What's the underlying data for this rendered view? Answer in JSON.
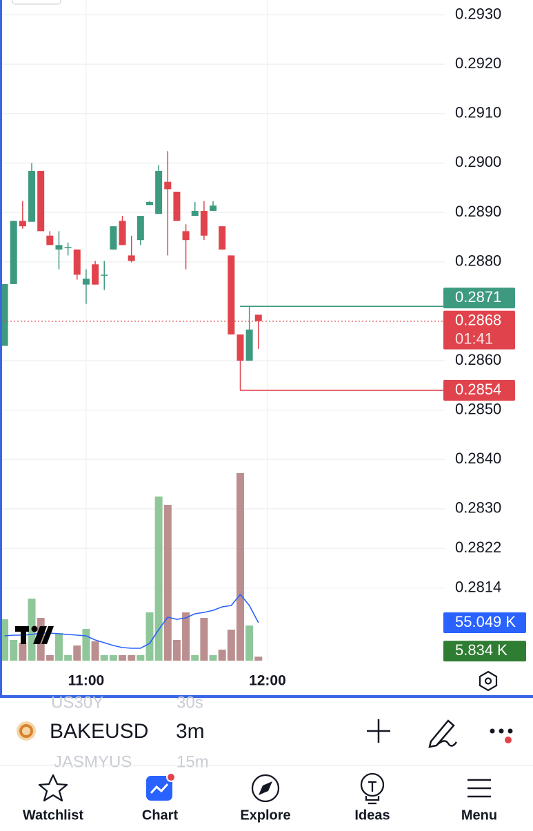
{
  "chart_data": {
    "type": "candlestick",
    "categories": [
      null,
      null,
      null,
      null,
      null,
      null,
      null,
      null,
      null,
      "11:00",
      null,
      null,
      null,
      null,
      null,
      null,
      null,
      null,
      null,
      null,
      null,
      null,
      null,
      null,
      null,
      null,
      null,
      null,
      null,
      "12:00"
    ],
    "open": [
      0.2863,
      0.28755,
      0.28883,
      0.28881,
      0.28984,
      0.28853,
      0.28825,
      0.2883,
      0.28825,
      0.28754,
      0.28795,
      0.28774,
      0.28825,
      0.28883,
      0.28813,
      0.28844,
      0.28915,
      0.28897,
      0.28962,
      0.28942,
      0.28862,
      0.28893,
      0.28903,
      0.28903,
      0.28872,
      0.28813,
      0.28653,
      0.286,
      0.28693,
      null
    ],
    "high": [
      0.28755,
      0.28883,
      0.28923,
      0.29,
      0.28984,
      0.28862,
      0.28862,
      0.28839,
      0.28825,
      0.28785,
      0.28802,
      0.28802,
      0.28872,
      0.28893,
      0.28853,
      0.28893,
      0.28923,
      0.28996,
      0.29024,
      0.28942,
      0.28876,
      0.28921,
      0.28923,
      0.28923,
      0.28872,
      0.28813,
      0.28653,
      0.2871,
      0.28693,
      null
    ],
    "low": [
      0.2863,
      0.28755,
      0.28867,
      0.28881,
      0.28862,
      0.28834,
      0.28785,
      0.28813,
      0.28764,
      0.28715,
      0.28754,
      0.28743,
      0.28825,
      0.28834,
      0.28799,
      0.28834,
      0.28915,
      0.28897,
      0.28813,
      0.28883,
      0.28785,
      0.28893,
      0.28844,
      0.28903,
      0.28825,
      0.28653,
      0.2854,
      0.286,
      0.28624,
      null
    ],
    "close": [
      0.28755,
      0.28883,
      0.28872,
      0.28984,
      0.28862,
      0.28834,
      0.28834,
      0.2883,
      0.28774,
      0.28766,
      0.28754,
      0.28774,
      0.28872,
      0.28834,
      0.28802,
      0.28893,
      0.28921,
      0.28984,
      0.28947,
      0.28883,
      0.28844,
      0.28903,
      0.28853,
      0.28914,
      0.28825,
      0.28653,
      0.286,
      0.28663,
      0.2868,
      null
    ],
    "up_color": "#3d9a80",
    "down_color": "#e1434c",
    "ylim": [
      0.2799,
      0.2933
    ],
    "yticks": [
      {
        "value": 0.293,
        "label": "0.2930"
      },
      {
        "value": 0.292,
        "label": "0.2920"
      },
      {
        "value": 0.291,
        "label": "0.2910"
      },
      {
        "value": 0.29,
        "label": "0.2900"
      },
      {
        "value": 0.289,
        "label": "0.2890"
      },
      {
        "value": 0.288,
        "label": "0.2880"
      },
      {
        "value": 0.286,
        "label": "0.2860"
      },
      {
        "value": 0.285,
        "label": "0.2850"
      },
      {
        "value": 0.284,
        "label": "0.2840"
      },
      {
        "value": 0.283,
        "label": "0.2830"
      },
      {
        "value": 0.2822,
        "label": "0.2822"
      },
      {
        "value": 0.2814,
        "label": "0.2814"
      }
    ],
    "grid": true,
    "price_lines": [
      {
        "value": 0.2871,
        "label": "0.2871",
        "color": "#3d9a80"
      },
      {
        "value": 0.2868,
        "label": "0.2868",
        "color": "#e1434c",
        "countdown": "01:41"
      },
      {
        "value": 0.2854,
        "label": "0.2854",
        "color": "#e1434c"
      }
    ],
    "volume": {
      "ylim": [
        0,
        300
      ],
      "up_color": "#8fc79a",
      "down_color": "#bb8f8f",
      "label_color": "#2e7d32",
      "values": [
        60,
        30,
        26,
        90,
        62,
        8,
        40,
        8,
        22,
        46,
        28,
        8,
        8,
        8,
        8,
        8,
        70,
        238,
        226,
        30,
        70,
        8,
        62,
        8,
        16,
        45,
        272,
        51,
        5.834,
        null
      ],
      "value_labels": [
        null,
        null,
        null,
        null,
        null,
        null,
        null,
        null,
        null,
        null,
        null,
        null,
        null,
        null,
        null,
        null,
        null,
        null,
        null,
        null,
        null,
        null,
        null,
        null,
        null,
        null,
        null,
        null,
        "5.834 K",
        null
      ]
    },
    "volume_ma": {
      "color": "#2962ff",
      "values": [
        36,
        37,
        37,
        38,
        40,
        40,
        39,
        38,
        37,
        36,
        30,
        26,
        22,
        19,
        18,
        18,
        25,
        45,
        63,
        60,
        62,
        68,
        70,
        73,
        78,
        80,
        96,
        80,
        55.049,
        null
      ],
      "value_labels": [
        null,
        null,
        null,
        null,
        null,
        null,
        null,
        null,
        null,
        null,
        null,
        null,
        null,
        null,
        null,
        null,
        null,
        null,
        null,
        null,
        null,
        null,
        null,
        null,
        null,
        null,
        null,
        null,
        "55.049 K",
        null
      ]
    }
  },
  "toolbar": {
    "symbol": "BAKEUSD",
    "interval": "3m",
    "prev_symbol": "US30Y",
    "prev_interval": "30s",
    "next_symbol": "JASMYUS",
    "next_interval": "15m"
  },
  "nav": [
    "Watchlist",
    "Chart",
    "Explore",
    "Ideas",
    "Menu"
  ]
}
